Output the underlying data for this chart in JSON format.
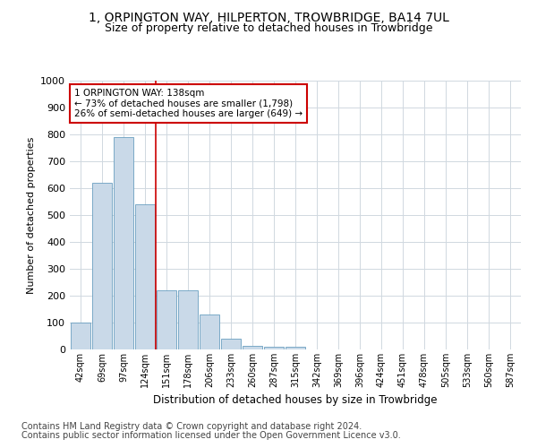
{
  "title1": "1, ORPINGTON WAY, HILPERTON, TROWBRIDGE, BA14 7UL",
  "title2": "Size of property relative to detached houses in Trowbridge",
  "xlabel": "Distribution of detached houses by size in Trowbridge",
  "ylabel": "Number of detached properties",
  "bar_labels": [
    "42sqm",
    "69sqm",
    "97sqm",
    "124sqm",
    "151sqm",
    "178sqm",
    "206sqm",
    "233sqm",
    "260sqm",
    "287sqm",
    "315sqm",
    "342sqm",
    "369sqm",
    "396sqm",
    "424sqm",
    "451sqm",
    "478sqm",
    "505sqm",
    "533sqm",
    "560sqm",
    "587sqm"
  ],
  "bar_values": [
    100,
    620,
    790,
    540,
    220,
    220,
    130,
    40,
    15,
    10,
    10,
    0,
    0,
    0,
    0,
    0,
    0,
    0,
    0,
    0,
    0
  ],
  "bar_color": "#c9d9e8",
  "bar_edge_color": "#6a9fc0",
  "grid_color": "#d0d8e0",
  "reference_line_x": 3.5,
  "annotation_text": "1 ORPINGTON WAY: 138sqm\n← 73% of detached houses are smaller (1,798)\n26% of semi-detached houses are larger (649) →",
  "annotation_box_color": "#ffffff",
  "annotation_box_edge": "#cc0000",
  "reference_line_color": "#cc0000",
  "footnote1": "Contains HM Land Registry data © Crown copyright and database right 2024.",
  "footnote2": "Contains public sector information licensed under the Open Government Licence v3.0.",
  "ylim": [
    0,
    1000
  ],
  "yticks": [
    0,
    100,
    200,
    300,
    400,
    500,
    600,
    700,
    800,
    900,
    1000
  ],
  "background_color": "#ffffff",
  "title1_fontsize": 10,
  "title2_fontsize": 9,
  "axis_fontsize": 8,
  "footnote_fontsize": 7
}
